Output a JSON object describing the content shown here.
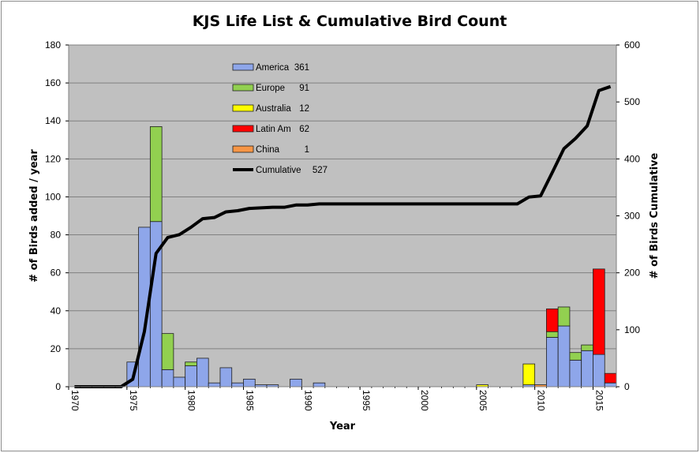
{
  "chart_data": {
    "type": "bar",
    "title": "KJS Life List & Cumulative Bird Count",
    "xlabel": "Year",
    "ylabel": "# of Birds added / year",
    "y2label": "# of Birds Cumulative",
    "xlim": [
      1970,
      2016
    ],
    "ylim": [
      0,
      180
    ],
    "y2lim": [
      0,
      600
    ],
    "x_ticks": [
      "1970",
      "1975",
      "1980",
      "1985",
      "1990",
      "1995",
      "2000",
      "2005",
      "2010",
      "2015"
    ],
    "y_ticks": [
      "0",
      "20",
      "40",
      "60",
      "80",
      "100",
      "120",
      "140",
      "160",
      "180"
    ],
    "y2_ticks": [
      "0",
      "100",
      "200",
      "300",
      "400",
      "500",
      "600"
    ],
    "grid": "horizontal",
    "stacked": true,
    "colors": {
      "plot_background": "#c0c0c0",
      "gridline": "#808080",
      "bar_outline": "#1f1f1f",
      "cumulative_line": "#000000"
    },
    "x": [
      1975,
      1976,
      1977,
      1978,
      1979,
      1980,
      1981,
      1982,
      1983,
      1984,
      1985,
      1986,
      1987,
      1989,
      1991,
      2005,
      2009,
      2010,
      2011,
      2012,
      2013,
      2014,
      2015,
      2016
    ],
    "series": [
      {
        "name": "America",
        "color": "#8ea6ea",
        "values": [
          13,
          84,
          87,
          9,
          5,
          11,
          15,
          2,
          10,
          2,
          4,
          1,
          1,
          4,
          2,
          0,
          1,
          0,
          26,
          32,
          14,
          19,
          17,
          2
        ]
      },
      {
        "name": "Europe",
        "color": "#92d050",
        "values": [
          0,
          0,
          50,
          19,
          0,
          2,
          0,
          0,
          0,
          0,
          0,
          0,
          0,
          0,
          0,
          0,
          0,
          0,
          3,
          10,
          4,
          3,
          0,
          0
        ]
      },
      {
        "name": "Australia",
        "color": "#ffff00",
        "values": [
          0,
          0,
          0,
          0,
          0,
          0,
          0,
          0,
          0,
          0,
          0,
          0,
          0,
          0,
          0,
          1,
          11,
          0,
          0,
          0,
          0,
          0,
          0,
          0
        ]
      },
      {
        "name": "Latin Am",
        "color": "#ff0000",
        "values": [
          0,
          0,
          0,
          0,
          0,
          0,
          0,
          0,
          0,
          0,
          0,
          0,
          0,
          0,
          0,
          0,
          0,
          0,
          12,
          0,
          0,
          0,
          45,
          5
        ]
      },
      {
        "name": "China",
        "color": "#f79646",
        "values": [
          0,
          0,
          0,
          0,
          0,
          0,
          0,
          0,
          0,
          0,
          0,
          0,
          0,
          0,
          0,
          0,
          0,
          1,
          0,
          0,
          0,
          0,
          0,
          0
        ]
      }
    ],
    "cumulative": {
      "name": "Cumulative",
      "color": "#000000",
      "x": [
        1970,
        1971,
        1972,
        1973,
        1974,
        1975,
        1976,
        1977,
        1978,
        1979,
        1980,
        1981,
        1982,
        1983,
        1984,
        1985,
        1986,
        1987,
        1988,
        1989,
        1990,
        1991,
        1992,
        2008,
        2009,
        2010,
        2011,
        2012,
        2013,
        2014,
        2015,
        2016
      ],
      "values": [
        0,
        0,
        0,
        0,
        0,
        13,
        97,
        234,
        262,
        267,
        280,
        295,
        297,
        307,
        309,
        313,
        314,
        315,
        315,
        319,
        319,
        321,
        321,
        321,
        333,
        335,
        376,
        418,
        436,
        458,
        520,
        527
      ]
    },
    "legend": {
      "placement": "upper-left-inside",
      "entries": [
        {
          "label": "America",
          "value": "361",
          "color": "#8ea6ea",
          "kind": "box"
        },
        {
          "label": "Europe",
          "value": "91",
          "color": "#92d050",
          "kind": "box"
        },
        {
          "label": "Australia",
          "value": "12",
          "color": "#ffff00",
          "kind": "box"
        },
        {
          "label": "Latin Am",
          "value": "62",
          "color": "#ff0000",
          "kind": "box"
        },
        {
          "label": "China",
          "value": "1",
          "color": "#f79646",
          "kind": "box"
        },
        {
          "label": "Cumulative",
          "value": "527",
          "color": "#000000",
          "kind": "line"
        }
      ]
    }
  }
}
